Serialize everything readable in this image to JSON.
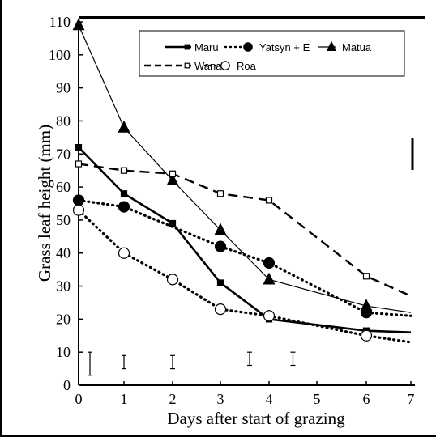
{
  "chart_data": {
    "type": "line",
    "xlabel": "Days after start of grazing",
    "ylabel": "Grass leaf height (mm)",
    "xlim": [
      0,
      7
    ],
    "ylim": [
      0,
      110
    ],
    "x_ticks": [
      "0",
      "1",
      "2",
      "3",
      "4",
      "5",
      "6",
      "7"
    ],
    "y_ticks": [
      "0",
      "10",
      "20",
      "30",
      "40",
      "50",
      "60",
      "70",
      "80",
      "90",
      "100",
      "110"
    ],
    "grid": false,
    "legend_position": "top-right",
    "series": [
      {
        "name": "Maru",
        "marker": "filled-square",
        "line": "solid",
        "x": [
          0,
          1,
          2,
          3,
          4,
          6,
          7
        ],
        "y": [
          72,
          58,
          49,
          31,
          20,
          16.5,
          16
        ]
      },
      {
        "name": "Yatsyn + E",
        "marker": "filled-circle",
        "line": "dotted",
        "x": [
          0,
          1,
          3,
          4,
          6,
          7
        ],
        "y": [
          56,
          54,
          42,
          37,
          22,
          21
        ]
      },
      {
        "name": "Matua",
        "marker": "filled-triangle",
        "line": "thin-solid",
        "x": [
          0,
          1,
          2,
          3,
          4,
          6,
          7
        ],
        "y": [
          109,
          78,
          62,
          47,
          32,
          24,
          22
        ]
      },
      {
        "name": "Wana",
        "marker": "open-square",
        "line": "dashed",
        "x": [
          0,
          1,
          2,
          3,
          4,
          6,
          7
        ],
        "y": [
          67,
          65,
          64,
          58,
          56,
          33,
          27
        ]
      },
      {
        "name": "Roa",
        "marker": "open-circle",
        "line": "dotted",
        "x": [
          0,
          1,
          2,
          3,
          4,
          6,
          7
        ],
        "y": [
          53,
          40,
          32,
          23,
          21,
          15,
          13
        ]
      }
    ],
    "error_bars": [
      {
        "x": 0.25,
        "y_low": 3,
        "y_high": 10
      },
      {
        "x": 1,
        "y_low": 5,
        "y_high": 9
      },
      {
        "x": 2,
        "y_low": 5,
        "y_high": 9
      },
      {
        "x": 3.6,
        "y_low": 6,
        "y_high": 10
      },
      {
        "x": 4.5,
        "y_low": 6,
        "y_high": 10
      }
    ]
  }
}
